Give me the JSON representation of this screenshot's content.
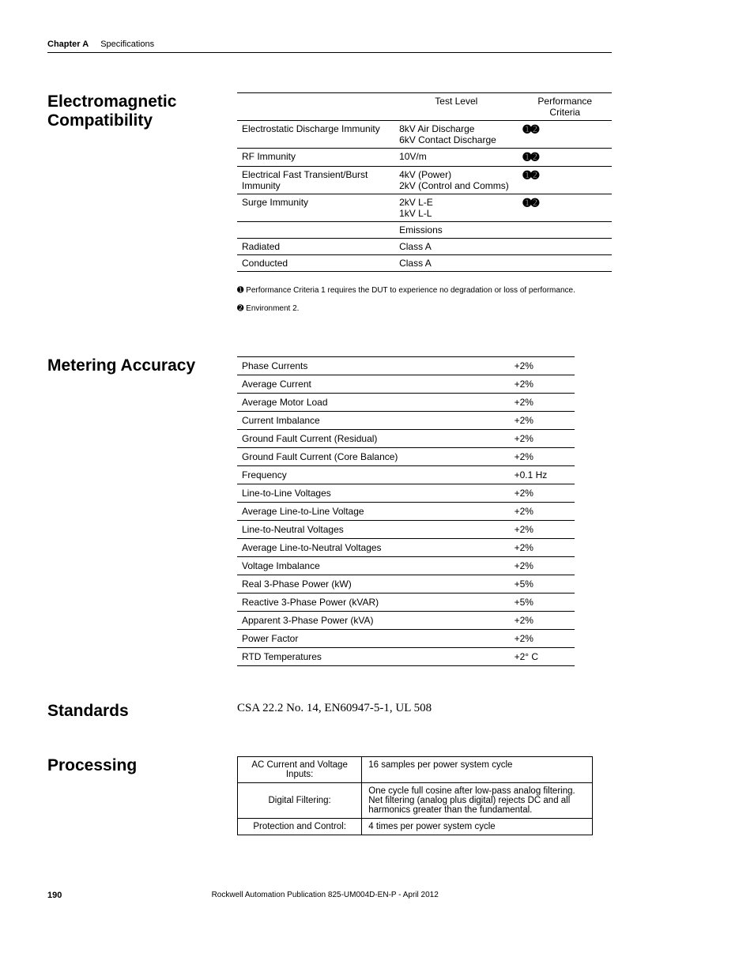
{
  "header": {
    "chapter": "Chapter A",
    "title": "Specifications"
  },
  "emc": {
    "heading": "Electromagnetic Compatibility",
    "colTest": "Test Level",
    "colPerf": "Performance Criteria",
    "rows": [
      {
        "name": "Electrostatic Discharge Immunity",
        "test": "8kV Air Discharge\n6kV Contact Discharge",
        "perf": "➊➋"
      },
      {
        "name": "RF Immunity",
        "test": "10V/m",
        "perf": "➊➋"
      },
      {
        "name": "Electrical Fast Transient/Burst Immunity",
        "test": "4kV (Power)\n2kV (Control and Comms)",
        "perf": "➊➋"
      },
      {
        "name": "Surge Immunity",
        "test": "2kV L-E\n1kV L-L",
        "perf": "➊➋"
      }
    ],
    "emissionsLabel": "Emissions",
    "radiated": {
      "name": "Radiated",
      "val": "Class A"
    },
    "conducted": {
      "name": "Conducted",
      "val": "Class A"
    },
    "note1": "➊ Performance Criteria 1 requires the DUT to experience no degradation or loss of performance.",
    "note2": "➋ Environment 2."
  },
  "metering": {
    "heading": "Metering Accuracy",
    "rows": [
      {
        "label": "Phase Currents",
        "val": "+2%"
      },
      {
        "label": "Average Current",
        "val": "+2%"
      },
      {
        "label": "Average Motor Load",
        "val": "+2%"
      },
      {
        "label": "Current Imbalance",
        "val": "+2%"
      },
      {
        "label": "Ground Fault Current (Residual)",
        "val": "+2%"
      },
      {
        "label": "Ground Fault Current (Core Balance)",
        "val": "+2%"
      },
      {
        "label": "Frequency",
        "val": "+0.1 Hz"
      },
      {
        "label": "Line-to-Line Voltages",
        "val": "+2%"
      },
      {
        "label": "Average Line-to-Line Voltage",
        "val": "+2%"
      },
      {
        "label": "Line-to-Neutral Voltages",
        "val": "+2%"
      },
      {
        "label": "Average Line-to-Neutral Voltages",
        "val": "+2%"
      },
      {
        "label": "Voltage Imbalance",
        "val": "+2%"
      },
      {
        "label": "Real 3-Phase Power (kW)",
        "val": "+5%"
      },
      {
        "label": "Reactive 3-Phase Power (kVAR)",
        "val": "+5%"
      },
      {
        "label": "Apparent 3-Phase Power (kVA)",
        "val": "+2%"
      },
      {
        "label": "Power Factor",
        "val": "+2%"
      },
      {
        "label": "RTD Temperatures",
        "val": "+2° C"
      }
    ]
  },
  "standards": {
    "heading": "Standards",
    "text": "CSA 22.2 No. 14, EN60947-5-1, UL 508"
  },
  "processing": {
    "heading": "Processing",
    "rows": [
      {
        "label": "AC Current and Voltage Inputs:",
        "val": "16 samples per power system cycle"
      },
      {
        "label": "Digital Filtering:",
        "val": "One cycle full cosine after low-pass analog filtering. Net filtering (analog plus digital) rejects DC and all harmonics greater than the fundamental."
      },
      {
        "label": "Protection and Control:",
        "val": "4 times per power system cycle"
      }
    ]
  },
  "footer": {
    "page": "190",
    "pub": "Rockwell Automation Publication 825-UM004D-EN-P - April 2012"
  }
}
